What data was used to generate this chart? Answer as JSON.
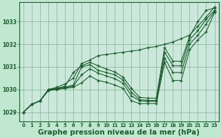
{
  "background_color": "#c0e8d0",
  "plot_bg_color": "#cce8dc",
  "grid_color": "#90b8a0",
  "line_color": "#1a5c2a",
  "xlabel": "Graphe pression niveau de la mer (hPa)",
  "xlabel_fontsize": 7.5,
  "ylim": [
    1028.6,
    1033.85
  ],
  "xlim": [
    -0.5,
    23.5
  ],
  "yticks": [
    1029,
    1030,
    1031,
    1032,
    1033
  ],
  "xticks": [
    0,
    1,
    2,
    3,
    4,
    5,
    6,
    7,
    8,
    9,
    10,
    11,
    12,
    13,
    14,
    15,
    16,
    17,
    18,
    19,
    20,
    21,
    22,
    23
  ],
  "series": [
    [
      1029.0,
      1029.35,
      1029.5,
      1030.0,
      1030.05,
      1030.15,
      1030.75,
      1031.05,
      1031.2,
      1031.05,
      1030.9,
      1030.78,
      1030.55,
      1030.05,
      1029.65,
      1029.62,
      1029.62,
      1031.85,
      1031.25,
      1031.25,
      1032.35,
      1033.0,
      1033.5,
      1033.6
    ],
    [
      1029.0,
      1029.35,
      1029.5,
      1029.98,
      1030.05,
      1030.1,
      1030.2,
      1031.0,
      1031.1,
      1030.85,
      1030.75,
      1030.65,
      1030.42,
      1029.88,
      1029.55,
      1029.52,
      1029.52,
      1031.65,
      1031.05,
      1031.05,
      1032.2,
      1032.6,
      1033.1,
      1033.5
    ],
    [
      1029.0,
      1029.35,
      1029.5,
      1029.96,
      1030.02,
      1030.08,
      1030.15,
      1030.65,
      1030.92,
      1030.72,
      1030.6,
      1030.48,
      1030.28,
      1029.72,
      1029.5,
      1029.48,
      1029.48,
      1031.4,
      1030.75,
      1030.75,
      1032.0,
      1032.4,
      1032.9,
      1033.45
    ],
    [
      1029.0,
      1029.35,
      1029.5,
      1029.95,
      1030.0,
      1030.05,
      1030.1,
      1030.3,
      1030.6,
      1030.4,
      1030.32,
      1030.2,
      1030.05,
      1029.5,
      1029.38,
      1029.38,
      1029.38,
      1031.2,
      1030.4,
      1030.4,
      1031.75,
      1032.2,
      1032.55,
      1033.4
    ],
    [
      1029.0,
      1029.35,
      1029.5,
      1030.0,
      1030.1,
      1030.25,
      1030.5,
      1031.15,
      1031.3,
      1031.5,
      1031.55,
      1031.6,
      1031.65,
      1031.7,
      1031.75,
      1031.85,
      1031.9,
      1032.0,
      1032.1,
      1032.25,
      1032.4,
      1032.8,
      1033.2,
      1033.65
    ]
  ]
}
